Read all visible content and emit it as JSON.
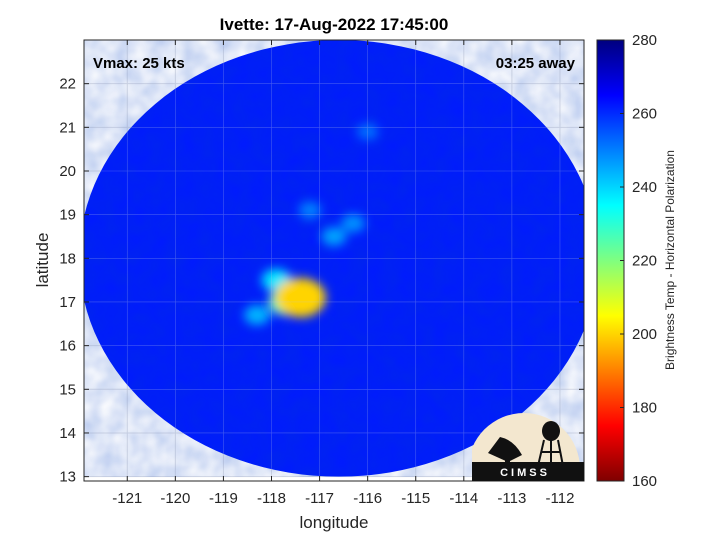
{
  "chart_data": {
    "type": "heatmap",
    "title": "Ivette: 17-Aug-2022 17:45:00",
    "xlabel": "longitude",
    "ylabel": "latitude",
    "xlim": [
      -121.9,
      -111.5
    ],
    "ylim": [
      12.9,
      23.0
    ],
    "xticks": [
      -121,
      -120,
      -119,
      -118,
      -117,
      -116,
      -115,
      -114,
      -113,
      -112
    ],
    "yticks": [
      13,
      14,
      15,
      16,
      17,
      18,
      19,
      20,
      21,
      22
    ],
    "grid": true,
    "annotations": {
      "vmax": "Vmax: 25 kts",
      "time_away": "03:25 away"
    },
    "colorbar": {
      "label": "Brightness Temp - Horizontal Polarization",
      "range": [
        160,
        280
      ],
      "ticks": [
        160,
        180,
        200,
        220,
        240,
        260,
        280
      ],
      "colormap": "jet",
      "placement": "right"
    },
    "swath": {
      "center_lon": -116.6,
      "center_lat": 18.0,
      "radius_lon": 5.4,
      "radius_lat": 5.0
    },
    "background_temperature": 262,
    "features": [
      {
        "lon": -117.4,
        "lat": 17.1,
        "temperature": 200,
        "description": "coldest core"
      },
      {
        "lon": -117.7,
        "lat": 17.0,
        "temperature": 228
      },
      {
        "lon": -117.9,
        "lat": 17.5,
        "temperature": 238
      },
      {
        "lon": -118.3,
        "lat": 16.7,
        "temperature": 244
      },
      {
        "lon": -116.3,
        "lat": 18.8,
        "temperature": 248
      },
      {
        "lon": -116.7,
        "lat": 18.5,
        "temperature": 246
      },
      {
        "lon": -117.2,
        "lat": 19.1,
        "temperature": 250
      },
      {
        "lon": -116.0,
        "lat": 20.9,
        "temperature": 252
      }
    ],
    "logo_text": "CIMSS"
  }
}
